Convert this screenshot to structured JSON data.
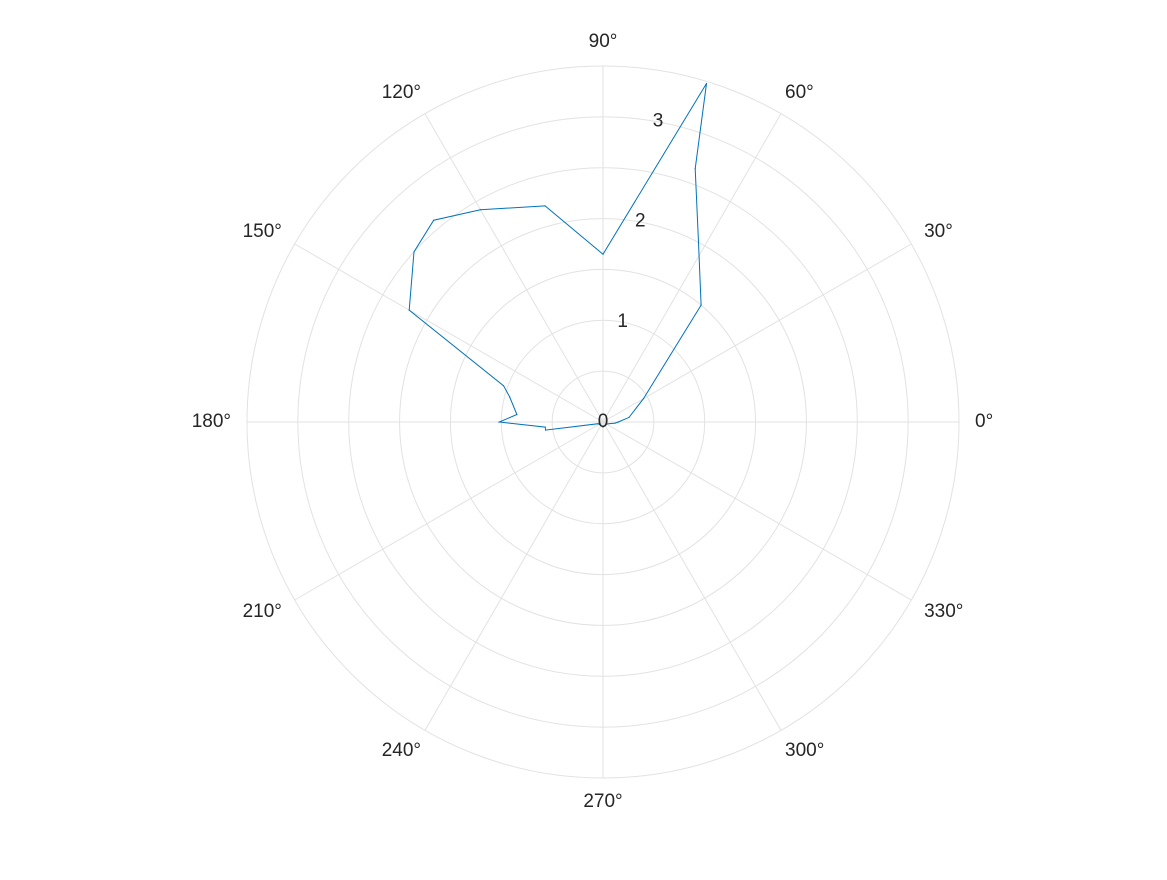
{
  "chart_data": {
    "type": "polar-line",
    "theta_unit": "degrees",
    "rlim": [
      0,
      3.5
    ],
    "r_ticks": [
      0,
      1,
      2,
      3
    ],
    "r_tick_labels": [
      "0",
      "1",
      "2",
      "3"
    ],
    "theta_ticks": [
      0,
      30,
      60,
      90,
      120,
      150,
      180,
      210,
      240,
      270,
      300,
      330
    ],
    "theta_tick_labels": [
      "0°",
      "30°",
      "60°",
      "90°",
      "120°",
      "150°",
      "180°",
      "210°",
      "240°",
      "270°",
      "300°",
      "330°"
    ],
    "grid": true,
    "legend": false,
    "colors": {
      "grid": "#e2e2e2",
      "series": "#0072bd",
      "text": "#262626"
    },
    "series": [
      {
        "theta": [
          0,
          10,
          30,
          50,
          62,
          70,
          73,
          90,
          105,
          120,
          130,
          138,
          150,
          160,
          165,
          175,
          180,
          185,
          188,
          200,
          230,
          270,
          300,
          330,
          355,
          0
        ],
        "r": [
          0.15,
          0.26,
          0.46,
          1.5,
          2.0,
          2.65,
          3.48,
          1.65,
          2.2,
          2.41,
          2.59,
          2.5,
          2.2,
          1.04,
          0.95,
          0.85,
          1.02,
          0.57,
          0.57,
          0.05,
          0.04,
          0.05,
          0.04,
          0.04,
          0.12,
          0.15
        ]
      }
    ]
  }
}
